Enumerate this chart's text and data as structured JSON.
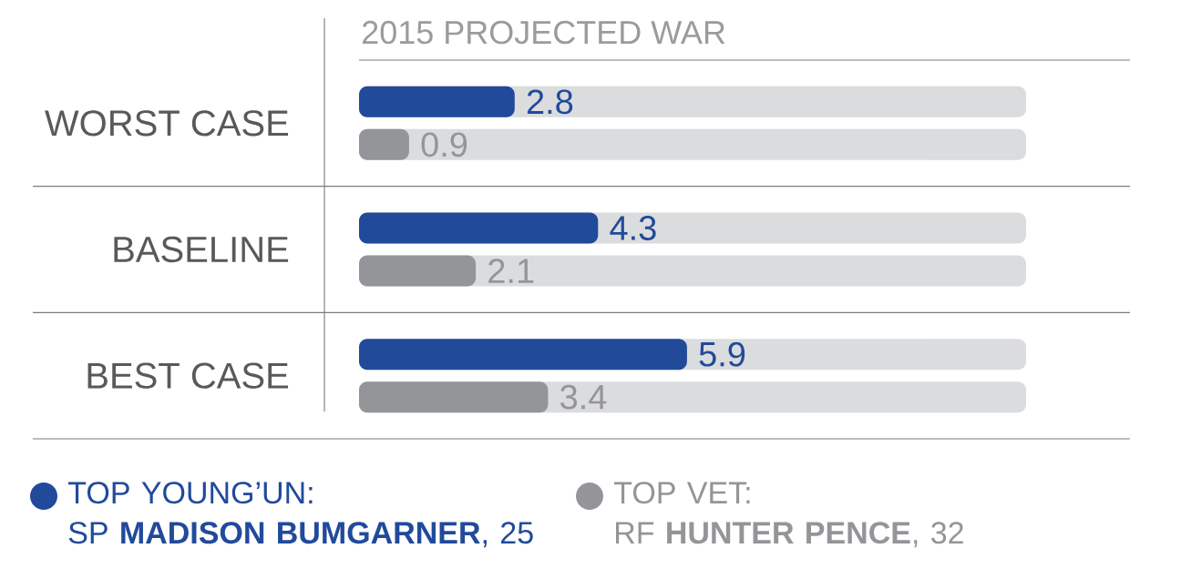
{
  "chart_data": {
    "type": "bar",
    "orientation": "horizontal",
    "title": "2015 PROJECTED WAR",
    "categories": [
      "WORST CASE",
      "BASELINE",
      "BEST CASE"
    ],
    "series": [
      {
        "name": "TOP YOUNG’UN:\nSP **MADISON BUMGARNER**, 25",
        "color": "#214a9b",
        "values": [
          2.8,
          4.3,
          5.9
        ]
      },
      {
        "name": "TOP VET:\nRF **HUNTER PENCE**, 32",
        "color": "#949598",
        "values": [
          0.9,
          2.1,
          3.4
        ]
      }
    ],
    "xlim": [
      0,
      12
    ],
    "data_labels": true,
    "legend": "bottom",
    "tick_labels": "y"
  }
}
